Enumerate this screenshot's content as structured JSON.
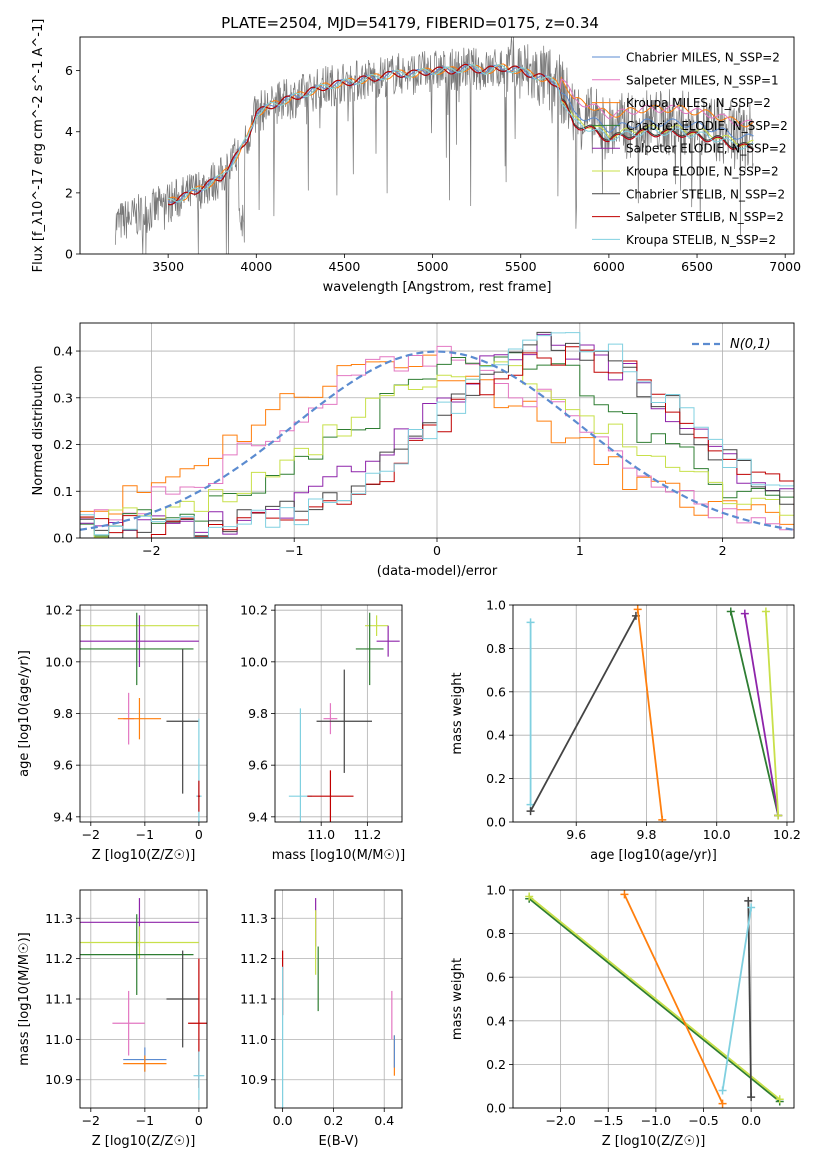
{
  "colors": {
    "chabrier_miles": "#5b8bd0",
    "salpeter_miles": "#e377c2",
    "kroupa_miles": "#ff7f0e",
    "chabrier_elodie": "#2e7d32",
    "salpeter_elodie": "#8e24aa",
    "kroupa_elodie": "#c8e04a",
    "chabrier_stelib": "#444444",
    "salpeter_stelib": "#c00000",
    "kroupa_stelib": "#80d0e0",
    "data": "#777777",
    "normal": "#5b8bd0"
  },
  "chart_data": [
    {
      "id": "spectrum",
      "type": "line",
      "title": "PLATE=2504, MJD=54179, FIBERID=0175, z=0.34",
      "xlabel": "wavelength [Angstrom, rest frame]",
      "ylabel": "Flux [f_λ10^-17 erg cm^-2 s^-1 A^-1]",
      "xlim": [
        3000,
        7050
      ],
      "ylim": [
        0,
        7.1
      ],
      "xticks": [
        3500,
        4000,
        4500,
        5000,
        5500,
        6000,
        6500,
        7000
      ],
      "yticks": [
        0,
        2,
        4,
        6
      ],
      "grid": false,
      "legend_position": "top-right",
      "legend": [
        "Chabrier MILES, N_SSP=2",
        "Salpeter MILES, N_SSP=1",
        "Kroupa MILES, N_SSP=2",
        "Chabrier ELODIE, N_SSP=2",
        "Salpeter ELODIE, N_SSP=2",
        "Kroupa ELODIE, N_SSP=2",
        "Chabrier STELIB, N_SSP=2",
        "Salpeter STELIB, N_SSP=2",
        "Kroupa STELIB, N_SSP=2"
      ],
      "model_curve": {
        "x": [
          3200,
          3300,
          3400,
          3500,
          3600,
          3700,
          3800,
          3900,
          3950,
          4000,
          4100,
          4200,
          4300,
          4400,
          4500,
          4600,
          4700,
          4800,
          4900,
          5000,
          5100,
          5200,
          5300,
          5400,
          5500,
          5600,
          5700,
          5750,
          5800,
          5900,
          6000,
          6100,
          6200,
          6300,
          6400,
          6500,
          6600,
          6700,
          6800
        ],
        "y": [
          1.0,
          1.2,
          1.4,
          1.7,
          1.9,
          2.2,
          2.5,
          3.3,
          3.8,
          4.6,
          4.9,
          5.1,
          5.3,
          5.5,
          5.6,
          5.7,
          5.8,
          5.9,
          5.9,
          6.0,
          6.0,
          6.1,
          6.0,
          6.1,
          6.0,
          5.8,
          5.6,
          5.2,
          4.6,
          4.4,
          4.1,
          4.2,
          4.3,
          4.3,
          4.3,
          4.2,
          4.1,
          3.9,
          3.8
        ]
      },
      "offsets_right": {
        "kroupa_miles": 0.45,
        "salpeter_miles": 0.45,
        "chabrier_miles": 0.0,
        "chabrier_elodie": -0.3,
        "salpeter_elodie": -0.35,
        "kroupa_elodie": -0.2,
        "chabrier_stelib": -0.3,
        "salpeter_stelib": -0.35,
        "kroupa_stelib": -0.3
      },
      "data_range": [
        3200,
        6820
      ]
    },
    {
      "id": "residuals",
      "type": "line",
      "xlabel": "(data-model)/error",
      "ylabel": "Normed distribution",
      "xlim": [
        -2.5,
        2.5
      ],
      "ylim": [
        0,
        0.46
      ],
      "xticks": [
        -2,
        -1,
        0,
        1,
        2
      ],
      "yticks": [
        0.0,
        0.1,
        0.2,
        0.3,
        0.4
      ],
      "grid": true,
      "legend_position": "top-right",
      "legend": [
        "N(0,1)"
      ],
      "series": [
        {
          "key": "kroupa_miles",
          "center": -0.3,
          "width": 1.05,
          "peak": 0.36
        },
        {
          "key": "salpeter_miles",
          "center": -0.1,
          "width": 1.0,
          "peak": 0.37
        },
        {
          "key": "chabrier_elodie",
          "center": 0.4,
          "width": 0.95,
          "peak": 0.37
        },
        {
          "key": "salpeter_elodie",
          "center": 0.75,
          "width": 0.9,
          "peak": 0.39
        },
        {
          "key": "kroupa_elodie",
          "center": 0.2,
          "width": 1.0,
          "peak": 0.34
        },
        {
          "key": "chabrier_stelib",
          "center": 0.8,
          "width": 0.85,
          "peak": 0.4
        },
        {
          "key": "salpeter_stelib",
          "center": 0.85,
          "width": 0.85,
          "peak": 0.38
        },
        {
          "key": "kroupa_stelib",
          "center": 0.85,
          "width": 0.85,
          "peak": 0.4
        }
      ]
    },
    {
      "id": "age_vs_z",
      "type": "scatter",
      "xlabel": "Z [log10(Z/Z☉)]",
      "ylabel": "age  [log10(age/yr)]",
      "xlim": [
        -2.2,
        0.15
      ],
      "ylim": [
        9.38,
        10.22
      ],
      "xticks": [
        -2,
        -1,
        0
      ],
      "yticks": [
        9.4,
        9.6,
        9.8,
        10.0,
        10.2
      ],
      "grid": true,
      "points": [
        {
          "key": "kroupa_elodie",
          "x": -1.1,
          "y": 10.14,
          "xerr": 1.1,
          "yerr": 0.0
        },
        {
          "key": "salpeter_elodie",
          "x": -1.1,
          "y": 10.08,
          "xerr": 1.1,
          "yerr": 0.1
        },
        {
          "key": "chabrier_elodie",
          "x": -1.15,
          "y": 10.05,
          "xerr": 1.05,
          "yerr": 0.14
        },
        {
          "key": "salpeter_miles",
          "x": -1.3,
          "y": 9.78,
          "xerr": 0.1,
          "yerr": 0.1
        },
        {
          "key": "kroupa_miles",
          "x": -1.1,
          "y": 9.78,
          "xerr": 0.4,
          "yerr": 0.08
        },
        {
          "key": "chabrier_stelib",
          "x": -0.3,
          "y": 9.77,
          "xerr": 0.3,
          "yerr": 0.28
        },
        {
          "key": "kroupa_stelib",
          "x": 0.0,
          "y": 9.48,
          "xerr": 0.05,
          "yerr": 0.3
        },
        {
          "key": "salpeter_stelib",
          "x": 0.0,
          "y": 9.48,
          "xerr": 0.02,
          "yerr": 0.06
        }
      ]
    },
    {
      "id": "age_vs_mass",
      "type": "scatter",
      "xlabel": "mass [log10(M/M☉)]",
      "ylabel": "",
      "xlim": [
        10.8,
        11.35
      ],
      "ylim": [
        9.38,
        10.22
      ],
      "xticks": [
        11.0,
        11.2
      ],
      "yticks": [
        9.4,
        9.6,
        9.8,
        10.0,
        10.2
      ],
      "grid": true,
      "points": [
        {
          "key": "kroupa_elodie",
          "x": 11.24,
          "y": 10.14,
          "xerr": 0.05,
          "yerr": 0.04
        },
        {
          "key": "salpeter_elodie",
          "x": 11.29,
          "y": 10.08,
          "xerr": 0.05,
          "yerr": 0.06
        },
        {
          "key": "chabrier_elodie",
          "x": 11.21,
          "y": 10.05,
          "xerr": 0.06,
          "yerr": 0.14
        },
        {
          "key": "salpeter_miles",
          "x": 11.04,
          "y": 9.78,
          "xerr": 0.03,
          "yerr": 0.06
        },
        {
          "key": "chabrier_stelib",
          "x": 11.1,
          "y": 9.77,
          "xerr": 0.12,
          "yerr": 0.2
        },
        {
          "key": "kroupa_stelib",
          "x": 10.91,
          "y": 9.48,
          "xerr": 0.05,
          "yerr": 0.34
        },
        {
          "key": "salpeter_stelib",
          "x": 11.04,
          "y": 9.48,
          "xerr": 0.1,
          "yerr": 0.1
        }
      ]
    },
    {
      "id": "weight_vs_age",
      "type": "line",
      "xlabel": "age  [log10(age/yr)]",
      "ylabel": "mass weight",
      "xlim": [
        9.42,
        10.22
      ],
      "ylim": [
        0,
        1.0
      ],
      "xticks": [
        9.6,
        9.8,
        10.0,
        10.2
      ],
      "yticks": [
        0.0,
        0.2,
        0.4,
        0.6,
        0.8,
        1.0
      ],
      "grid": true,
      "series": [
        {
          "key": "kroupa_stelib",
          "x": [
            9.47,
            9.47
          ],
          "y": [
            0.92,
            0.08
          ]
        },
        {
          "key": "chabrier_stelib",
          "x": [
            9.47,
            9.77
          ],
          "y": [
            0.05,
            0.95
          ]
        },
        {
          "key": "kroupa_miles",
          "x": [
            9.775,
            9.845
          ],
          "y": [
            0.98,
            0.01
          ]
        },
        {
          "key": "chabrier_elodie",
          "x": [
            10.04,
            10.175
          ],
          "y": [
            0.97,
            0.03
          ]
        },
        {
          "key": "salpeter_elodie",
          "x": [
            10.08,
            10.175
          ],
          "y": [
            0.96,
            0.03
          ]
        },
        {
          "key": "kroupa_elodie",
          "x": [
            10.14,
            10.175
          ],
          "y": [
            0.97,
            0.03
          ]
        }
      ]
    },
    {
      "id": "mass_vs_z",
      "type": "scatter",
      "xlabel": "Z [log10(Z/Z☉)]",
      "ylabel": "mass [log10(M/M☉)]",
      "xlim": [
        -2.2,
        0.15
      ],
      "ylim": [
        10.83,
        11.37
      ],
      "xticks": [
        -2,
        -1,
        0
      ],
      "yticks": [
        10.9,
        11.0,
        11.1,
        11.2,
        11.3
      ],
      "grid": true,
      "points": [
        {
          "key": "salpeter_elodie",
          "x": -1.1,
          "y": 11.29,
          "xerr": 1.1,
          "yerr": 0.06
        },
        {
          "key": "kroupa_elodie",
          "x": -1.1,
          "y": 11.24,
          "xerr": 1.1,
          "yerr": 0.04
        },
        {
          "key": "chabrier_elodie",
          "x": -1.15,
          "y": 11.21,
          "xerr": 1.05,
          "yerr": 0.1
        },
        {
          "key": "salpeter_miles",
          "x": -1.3,
          "y": 11.04,
          "xerr": 0.3,
          "yerr": 0.08
        },
        {
          "key": "chabrier_miles",
          "x": -1.0,
          "y": 10.95,
          "xerr": 0.4,
          "yerr": 0.03
        },
        {
          "key": "kroupa_miles",
          "x": -1.0,
          "y": 10.94,
          "xerr": 0.4,
          "yerr": 0.02
        },
        {
          "key": "chabrier_stelib",
          "x": -0.3,
          "y": 11.1,
          "xerr": 0.3,
          "yerr": 0.12
        },
        {
          "key": "salpeter_stelib",
          "x": 0.0,
          "y": 11.04,
          "xerr": 0.2,
          "yerr": 0.16
        },
        {
          "key": "kroupa_stelib",
          "x": 0.0,
          "y": 10.91,
          "xerr": 0.1,
          "yerr": 0.06
        }
      ]
    },
    {
      "id": "mass_vs_ebv",
      "type": "scatter",
      "xlabel": "E(B-V)",
      "ylabel": "",
      "xlim": [
        -0.03,
        0.47
      ],
      "ylim": [
        10.83,
        11.37
      ],
      "xticks": [
        0.0,
        0.2,
        0.4
      ],
      "yticks": [
        10.9,
        11.0,
        11.1,
        11.2,
        11.3
      ],
      "grid": true,
      "points": [
        {
          "key": "salpeter_elodie",
          "x": 0.13,
          "y": 11.29,
          "xerr": 0.0,
          "yerr": 0.06
        },
        {
          "key": "kroupa_elodie",
          "x": 0.13,
          "y": 11.24,
          "xerr": 0.0,
          "yerr": 0.08
        },
        {
          "key": "chabrier_elodie",
          "x": 0.14,
          "y": 11.15,
          "xerr": 0.0,
          "yerr": 0.08
        },
        {
          "key": "salpeter_stelib",
          "x": 0.0,
          "y": 11.14,
          "xerr": 0.0,
          "yerr": 0.08
        },
        {
          "key": "kroupa_stelib",
          "x": 0.0,
          "y": 11.0,
          "xerr": 0.0,
          "yerr": 0.18
        },
        {
          "key": "salpeter_miles",
          "x": 0.43,
          "y": 11.06,
          "xerr": 0.0,
          "yerr": 0.06
        },
        {
          "key": "kroupa_miles",
          "x": 0.44,
          "y": 10.96,
          "xerr": 0.0,
          "yerr": 0.05
        },
        {
          "key": "chabrier_miles",
          "x": 0.44,
          "y": 10.97,
          "xerr": 0.0,
          "yerr": 0.04
        }
      ]
    },
    {
      "id": "weight_vs_z",
      "type": "line",
      "xlabel": "Z [log10(Z/Z☉)]",
      "ylabel": "mass weight",
      "xlim": [
        -2.5,
        0.45
      ],
      "ylim": [
        0,
        1.0
      ],
      "xticks": [
        -2.0,
        -1.5,
        -1.0,
        -0.5,
        0.0
      ],
      "yticks": [
        0.0,
        0.2,
        0.4,
        0.6,
        0.8,
        1.0
      ],
      "grid": true,
      "series": [
        {
          "key": "chabrier_elodie",
          "x": [
            -2.33,
            0.3
          ],
          "y": [
            0.96,
            0.03
          ]
        },
        {
          "key": "kroupa_elodie",
          "x": [
            -2.33,
            0.3
          ],
          "y": [
            0.97,
            0.04
          ]
        },
        {
          "key": "kroupa_miles",
          "x": [
            -1.33,
            -0.3
          ],
          "y": [
            0.98,
            0.02
          ]
        },
        {
          "key": "chabrier_stelib",
          "x": [
            -0.03,
            0.0
          ],
          "y": [
            0.95,
            0.05
          ]
        },
        {
          "key": "kroupa_stelib",
          "x": [
            -0.3,
            0.0
          ],
          "y": [
            0.08,
            0.92
          ]
        }
      ]
    }
  ]
}
